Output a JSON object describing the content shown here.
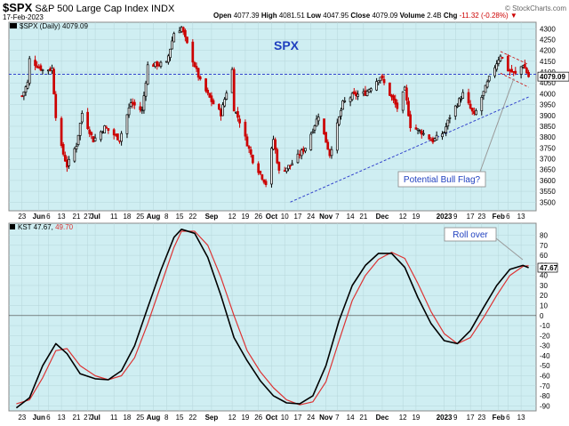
{
  "header": {
    "symbol": "$SPX",
    "name": "S&P 500 Large Cap Index",
    "exchange": "INDX",
    "date": "17-Feb-2023",
    "open_label": "Open",
    "open": "4077.39",
    "high_label": "High",
    "high": "4081.51",
    "low_label": "Low",
    "low": "4047.95",
    "close_label": "Close",
    "close": "4079.09",
    "volume_label": "Volume",
    "volume": "2.4B",
    "chg_label": "Chg",
    "chg": "-11.32 (-0.28%)",
    "brand": "© StockCharts.com"
  },
  "colors": {
    "panel_bg": "#cfeef2",
    "bull": "#000000",
    "bear": "#cc0000",
    "trend": "#3344cc",
    "kst": "#000000",
    "signal": "#dd3333"
  },
  "chart_data": [
    {
      "type": "candlestick",
      "title": "SPX",
      "legend": "$SPX (Daily) 4079.09",
      "ylim": [
        3460,
        4330
      ],
      "y_ticks": [
        3500,
        3550,
        3600,
        3650,
        3700,
        3750,
        3800,
        3850,
        3900,
        3950,
        4000,
        4050,
        4100,
        4150,
        4200,
        4250,
        4300
      ],
      "last_value_label": "4079.09",
      "x_labels": [
        "23",
        "Jun",
        "6",
        "13",
        "21",
        "27",
        "Jul",
        "11",
        "18",
        "25",
        "Aug",
        "8",
        "15",
        "22",
        "Sep",
        "12",
        "19",
        "26",
        "Oct",
        "10",
        "17",
        "24",
        "Nov",
        "7",
        "14",
        "21",
        "Dec",
        "12",
        "19",
        "2023",
        "9",
        "17",
        "23",
        "Feb",
        "6",
        "13"
      ],
      "horizontal_line": 4090,
      "lower_trendline": {
        "start": {
          "date": "2022-10-13",
          "value": 3500
        },
        "end": {
          "date": "2023-02-17",
          "value": 3985
        }
      },
      "flag_channel": {
        "top": [
          {
            "date": "2023-02-02",
            "value": 4195
          },
          {
            "date": "2023-02-17",
            "value": 4135
          }
        ],
        "bottom": [
          {
            "date": "2023-02-02",
            "value": 4095
          },
          {
            "date": "2023-02-17",
            "value": 4030
          }
        ]
      },
      "annotations": [
        "Potential Bull Flag?"
      ],
      "series": [
        {
          "name": "$SPX",
          "points": [
            {
              "date": "2022-05-23",
              "value": 3990
            },
            {
              "date": "2022-05-26",
              "value": 4050
            },
            {
              "date": "2022-05-27",
              "value": 4158
            },
            {
              "date": "2022-06-03",
              "value": 4110
            },
            {
              "date": "2022-06-08",
              "value": 4115
            },
            {
              "date": "2022-06-10",
              "value": 3900
            },
            {
              "date": "2022-06-13",
              "value": 3750
            },
            {
              "date": "2022-06-16",
              "value": 3667
            },
            {
              "date": "2022-06-21",
              "value": 3765
            },
            {
              "date": "2022-06-24",
              "value": 3911
            },
            {
              "date": "2022-06-30",
              "value": 3785
            },
            {
              "date": "2022-07-06",
              "value": 3845
            },
            {
              "date": "2022-07-14",
              "value": 3790
            },
            {
              "date": "2022-07-20",
              "value": 3959
            },
            {
              "date": "2022-07-26",
              "value": 3921
            },
            {
              "date": "2022-07-29",
              "value": 4130
            },
            {
              "date": "2022-08-08",
              "value": 4140
            },
            {
              "date": "2022-08-12",
              "value": 4280
            },
            {
              "date": "2022-08-16",
              "value": 4305
            },
            {
              "date": "2022-08-19",
              "value": 4228
            },
            {
              "date": "2022-08-26",
              "value": 4057
            },
            {
              "date": "2022-09-01",
              "value": 3966
            },
            {
              "date": "2022-09-06",
              "value": 3908
            },
            {
              "date": "2022-09-12",
              "value": 4110
            },
            {
              "date": "2022-09-13",
              "value": 3932
            },
            {
              "date": "2022-09-16",
              "value": 3873
            },
            {
              "date": "2022-09-23",
              "value": 3693
            },
            {
              "date": "2022-09-30",
              "value": 3585
            },
            {
              "date": "2022-10-04",
              "value": 3790
            },
            {
              "date": "2022-10-07",
              "value": 3640
            },
            {
              "date": "2022-10-13",
              "value": 3669
            },
            {
              "date": "2022-10-21",
              "value": 3752
            },
            {
              "date": "2022-10-28",
              "value": 3901
            },
            {
              "date": "2022-11-03",
              "value": 3720
            },
            {
              "date": "2022-11-10",
              "value": 3956
            },
            {
              "date": "2022-11-15",
              "value": 3991
            },
            {
              "date": "2022-11-22",
              "value": 4003
            },
            {
              "date": "2022-11-30",
              "value": 4080
            },
            {
              "date": "2022-12-05",
              "value": 3998
            },
            {
              "date": "2022-12-09",
              "value": 3934
            },
            {
              "date": "2022-12-13",
              "value": 4019
            },
            {
              "date": "2022-12-16",
              "value": 3852
            },
            {
              "date": "2022-12-22",
              "value": 3822
            },
            {
              "date": "2022-12-28",
              "value": 3783
            },
            {
              "date": "2023-01-03",
              "value": 3824
            },
            {
              "date": "2023-01-06",
              "value": 3895
            },
            {
              "date": "2023-01-13",
              "value": 3999
            },
            {
              "date": "2023-01-19",
              "value": 3898
            },
            {
              "date": "2023-01-27",
              "value": 4070
            },
            {
              "date": "2023-02-02",
              "value": 4180
            },
            {
              "date": "2023-02-06",
              "value": 4111
            },
            {
              "date": "2023-02-10",
              "value": 4090
            },
            {
              "date": "2023-02-14",
              "value": 4136
            },
            {
              "date": "2023-02-17",
              "value": 4079
            }
          ]
        }
      ]
    },
    {
      "type": "line",
      "legend": {
        "name": "KST",
        "value": "47.67",
        "signal_value": "49.70"
      },
      "ylim": [
        -95,
        92
      ],
      "y_ticks": [
        80,
        70,
        60,
        50,
        40,
        30,
        20,
        10,
        0,
        -10,
        -20,
        -30,
        -40,
        -50,
        -60,
        -70,
        -80,
        -90
      ],
      "last_value_label": "47.67",
      "zero_line": 0,
      "annotations": [
        "Roll over"
      ],
      "x_labels": [
        "23",
        "Jun",
        "6",
        "13",
        "21",
        "27",
        "Jul",
        "11",
        "18",
        "25",
        "Aug",
        "8",
        "15",
        "22",
        "Sep",
        "12",
        "19",
        "26",
        "Oct",
        "10",
        "17",
        "24",
        "Nov",
        "7",
        "14",
        "21",
        "Dec",
        "12",
        "19",
        "2023",
        "9",
        "17",
        "23",
        "Feb",
        "6",
        "13"
      ],
      "series": [
        {
          "name": "KST",
          "points": [
            {
              "date": "2022-05-20",
              "value": -92
            },
            {
              "date": "2022-05-27",
              "value": -82
            },
            {
              "date": "2022-06-03",
              "value": -50
            },
            {
              "date": "2022-06-10",
              "value": -28
            },
            {
              "date": "2022-06-16",
              "value": -38
            },
            {
              "date": "2022-06-23",
              "value": -58
            },
            {
              "date": "2022-07-01",
              "value": -63
            },
            {
              "date": "2022-07-08",
              "value": -64
            },
            {
              "date": "2022-07-15",
              "value": -55
            },
            {
              "date": "2022-07-22",
              "value": -30
            },
            {
              "date": "2022-07-29",
              "value": 8
            },
            {
              "date": "2022-08-05",
              "value": 45
            },
            {
              "date": "2022-08-12",
              "value": 78
            },
            {
              "date": "2022-08-16",
              "value": 86
            },
            {
              "date": "2022-08-23",
              "value": 82
            },
            {
              "date": "2022-08-30",
              "value": 58
            },
            {
              "date": "2022-09-06",
              "value": 20
            },
            {
              "date": "2022-09-13",
              "value": -22
            },
            {
              "date": "2022-09-20",
              "value": -45
            },
            {
              "date": "2022-09-27",
              "value": -65
            },
            {
              "date": "2022-10-04",
              "value": -80
            },
            {
              "date": "2022-10-11",
              "value": -87
            },
            {
              "date": "2022-10-18",
              "value": -88
            },
            {
              "date": "2022-10-25",
              "value": -80
            },
            {
              "date": "2022-11-01",
              "value": -50
            },
            {
              "date": "2022-11-08",
              "value": -5
            },
            {
              "date": "2022-11-15",
              "value": 30
            },
            {
              "date": "2022-11-22",
              "value": 50
            },
            {
              "date": "2022-11-29",
              "value": 62
            },
            {
              "date": "2022-12-06",
              "value": 62
            },
            {
              "date": "2022-12-13",
              "value": 48
            },
            {
              "date": "2022-12-20",
              "value": 18
            },
            {
              "date": "2022-12-27",
              "value": -8
            },
            {
              "date": "2023-01-03",
              "value": -25
            },
            {
              "date": "2023-01-10",
              "value": -28
            },
            {
              "date": "2023-01-17",
              "value": -15
            },
            {
              "date": "2023-01-24",
              "value": 8
            },
            {
              "date": "2023-01-31",
              "value": 30
            },
            {
              "date": "2023-02-07",
              "value": 46
            },
            {
              "date": "2023-02-14",
              "value": 50
            },
            {
              "date": "2023-02-17",
              "value": 47.67
            }
          ]
        },
        {
          "name": "signal",
          "points": [
            {
              "date": "2022-05-20",
              "value": -88
            },
            {
              "date": "2022-05-27",
              "value": -84
            },
            {
              "date": "2022-06-03",
              "value": -62
            },
            {
              "date": "2022-06-10",
              "value": -35
            },
            {
              "date": "2022-06-16",
              "value": -33
            },
            {
              "date": "2022-06-23",
              "value": -50
            },
            {
              "date": "2022-07-01",
              "value": -60
            },
            {
              "date": "2022-07-08",
              "value": -64
            },
            {
              "date": "2022-07-15",
              "value": -60
            },
            {
              "date": "2022-07-22",
              "value": -42
            },
            {
              "date": "2022-07-29",
              "value": -8
            },
            {
              "date": "2022-08-05",
              "value": 30
            },
            {
              "date": "2022-08-12",
              "value": 68
            },
            {
              "date": "2022-08-16",
              "value": 84
            },
            {
              "date": "2022-08-23",
              "value": 84
            },
            {
              "date": "2022-08-30",
              "value": 70
            },
            {
              "date": "2022-09-06",
              "value": 38
            },
            {
              "date": "2022-09-13",
              "value": 0
            },
            {
              "date": "2022-09-20",
              "value": -35
            },
            {
              "date": "2022-09-27",
              "value": -56
            },
            {
              "date": "2022-10-04",
              "value": -72
            },
            {
              "date": "2022-10-11",
              "value": -84
            },
            {
              "date": "2022-10-18",
              "value": -89
            },
            {
              "date": "2022-10-25",
              "value": -86
            },
            {
              "date": "2022-11-01",
              "value": -66
            },
            {
              "date": "2022-11-08",
              "value": -25
            },
            {
              "date": "2022-11-15",
              "value": 15
            },
            {
              "date": "2022-11-22",
              "value": 40
            },
            {
              "date": "2022-11-29",
              "value": 56
            },
            {
              "date": "2022-12-06",
              "value": 63
            },
            {
              "date": "2022-12-13",
              "value": 57
            },
            {
              "date": "2022-12-20",
              "value": 32
            },
            {
              "date": "2022-12-27",
              "value": 4
            },
            {
              "date": "2023-01-03",
              "value": -18
            },
            {
              "date": "2023-01-10",
              "value": -28
            },
            {
              "date": "2023-01-17",
              "value": -22
            },
            {
              "date": "2023-01-24",
              "value": -2
            },
            {
              "date": "2023-01-31",
              "value": 20
            },
            {
              "date": "2023-02-07",
              "value": 40
            },
            {
              "date": "2023-02-14",
              "value": 49
            },
            {
              "date": "2023-02-17",
              "value": 49.7
            }
          ]
        }
      ]
    }
  ]
}
